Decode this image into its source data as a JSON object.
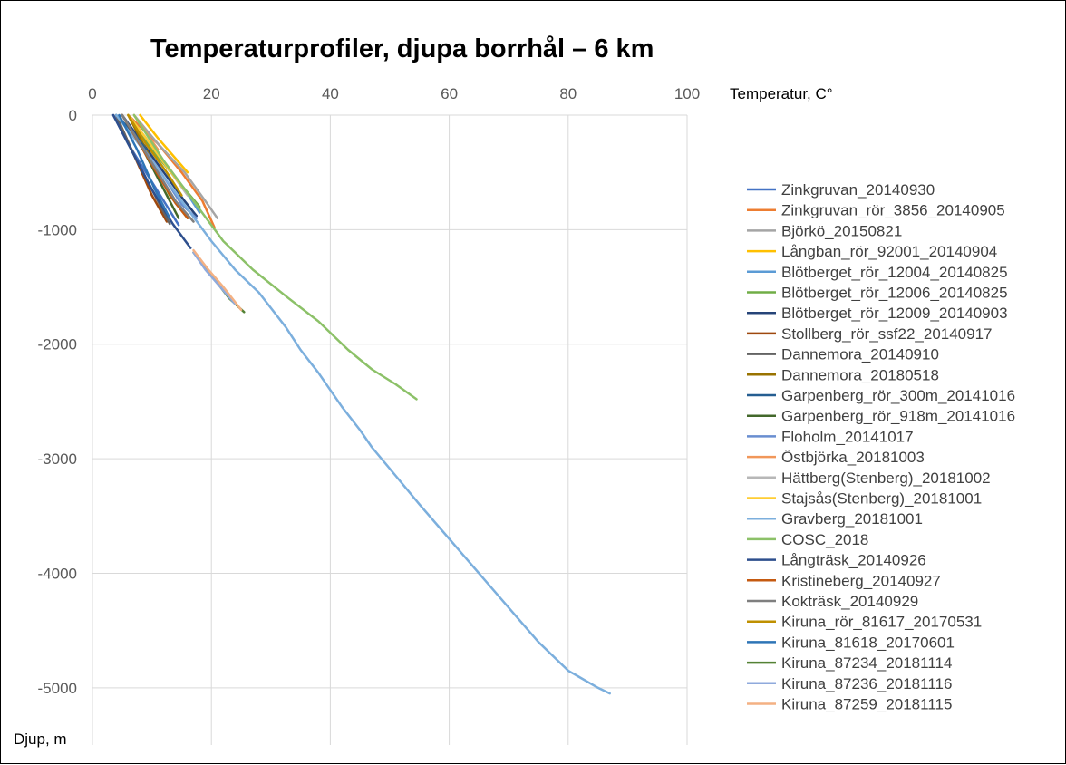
{
  "chart_data": {
    "type": "line",
    "title": "Temperaturprofiler, djupa borrhål – 6 km",
    "xlabel": "Temperatur, C°",
    "ylabel": "Djup, m",
    "xlim": [
      0,
      100
    ],
    "ylim": [
      -5500,
      0
    ],
    "x_ticks": [
      "0",
      "20",
      "40",
      "60",
      "80",
      "100"
    ],
    "y_ticks": [
      "0",
      "-1000",
      "-2000",
      "-3000",
      "-4000",
      "-5000"
    ],
    "x_tick_values": [
      0,
      20,
      40,
      60,
      80,
      100
    ],
    "y_tick_values": [
      0,
      -1000,
      -2000,
      -3000,
      -4000,
      -5000
    ],
    "x_axis_position": "top",
    "grid": true,
    "legend_position": "right",
    "series": [
      {
        "name": "Zinkgruvan_20140930",
        "color": "#4472c4",
        "x": [
          3.5,
          6,
          9,
          12,
          14.5
        ],
        "y": [
          0,
          -250,
          -500,
          -750,
          -960
        ]
      },
      {
        "name": "Zinkgruvan_rör_3856_20140905",
        "color": "#ed7d31",
        "x": [
          6,
          11,
          15,
          18.5,
          20.5
        ],
        "y": [
          0,
          -250,
          -500,
          -750,
          -980
        ]
      },
      {
        "name": "Björkö_20150821",
        "color": "#a5a5a5",
        "x": [
          7,
          11,
          15.5,
          19,
          21
        ],
        "y": [
          0,
          -250,
          -500,
          -750,
          -900
        ]
      },
      {
        "name": "Långban_rör_92001_20140904",
        "color": "#ffc000",
        "x": [
          8,
          11,
          14,
          16
        ],
        "y": [
          0,
          -200,
          -380,
          -500
        ]
      },
      {
        "name": "Blötberget_rör_12004_20140825",
        "color": "#5b9bd5",
        "x": [
          6,
          9,
          12,
          15.5,
          18
        ],
        "y": [
          0,
          -200,
          -420,
          -650,
          -850
        ]
      },
      {
        "name": "Blötberget_rör_12006_20140825",
        "color": "#70ad47",
        "x": [
          6,
          10,
          14,
          18
        ],
        "y": [
          0,
          -300,
          -550,
          -800
        ]
      },
      {
        "name": "Blötberget_rör_12009_20140903",
        "color": "#264478",
        "x": [
          5,
          8.5,
          12,
          15.5,
          17.5
        ],
        "y": [
          0,
          -250,
          -500,
          -750,
          -880
        ]
      },
      {
        "name": "Stollberg_rör_ssf22_20140917",
        "color": "#9e480e",
        "x": [
          4,
          7,
          10,
          12.5
        ],
        "y": [
          0,
          -350,
          -700,
          -930
        ]
      },
      {
        "name": "Dannemora_20140910",
        "color": "#636363",
        "x": [
          4,
          7,
          10,
          13
        ],
        "y": [
          0,
          -350,
          -650,
          -950
        ]
      },
      {
        "name": "Dannemora_20180518",
        "color": "#997300",
        "x": [
          6,
          9.5,
          13,
          16
        ],
        "y": [
          0,
          -350,
          -700,
          -900
        ]
      },
      {
        "name": "Garpenberg_rör_300m_20141016",
        "color": "#255e91",
        "x": [
          4,
          7,
          9
        ],
        "y": [
          0,
          -160,
          -300
        ]
      },
      {
        "name": "Garpenberg_rör_918m_20141016",
        "color": "#43682b",
        "x": [
          5,
          8.5,
          12,
          14.5
        ],
        "y": [
          0,
          -300,
          -650,
          -900
        ]
      },
      {
        "name": "Floholm_20141017",
        "color": "#698ed0",
        "x": [
          5,
          8,
          11.5,
          15,
          17.5
        ],
        "y": [
          0,
          -250,
          -500,
          -780,
          -900
        ]
      },
      {
        "name": "Östbjörka_20181003",
        "color": "#f1975a",
        "x": [
          7,
          9,
          11
        ],
        "y": [
          0,
          -150,
          -300
        ]
      },
      {
        "name": "Hättberg(Stenberg)_20181002",
        "color": "#b7b7b7",
        "x": [
          6,
          9,
          12.5,
          16
        ],
        "y": [
          0,
          -200,
          -450,
          -700
        ]
      },
      {
        "name": "Stajsås(Stenberg)_20181001",
        "color": "#ffcd33",
        "x": [
          6,
          9,
          12.5,
          15.5
        ],
        "y": [
          0,
          -200,
          -450,
          -650
        ]
      },
      {
        "name": "Gravberg_20181001",
        "color": "#7cafdd",
        "x": [
          4,
          10,
          15,
          20,
          24,
          28,
          32.5,
          35,
          38,
          40,
          42,
          45,
          47,
          51,
          55,
          60,
          65,
          70,
          75,
          80,
          85,
          87
        ],
        "y": [
          0,
          -400,
          -750,
          -1100,
          -1350,
          -1550,
          -1850,
          -2050,
          -2250,
          -2400,
          -2550,
          -2750,
          -2900,
          -3150,
          -3400,
          -3700,
          -4000,
          -4300,
          -4600,
          -4850,
          -5000,
          -5050
        ]
      },
      {
        "name": "COSC_2018",
        "color": "#8cc168",
        "x": [
          7,
          12,
          17,
          22,
          27,
          33,
          38,
          43,
          47,
          51,
          54.5
        ],
        "y": [
          0,
          -400,
          -750,
          -1100,
          -1350,
          -1600,
          -1800,
          -2050,
          -2220,
          -2350,
          -2480
        ]
      },
      {
        "name": "Långträsk_20140926",
        "color": "#2e4f8d",
        "x": [
          3.5,
          6.5,
          10,
          13.5,
          16.5
        ],
        "y": [
          0,
          -300,
          -650,
          -950,
          -1160
        ]
      },
      {
        "name": "Kristineberg_20140927",
        "color": "#c55a11",
        "x": [
          5,
          8,
          11,
          14,
          16
        ],
        "y": [
          0,
          -260,
          -520,
          -770,
          -900
        ]
      },
      {
        "name": "Kokträsk_20140929",
        "color": "#7f7f7f",
        "x": [
          5,
          8,
          11,
          14,
          17
        ],
        "y": [
          0,
          -250,
          -500,
          -750,
          -930
        ]
      },
      {
        "name": "Kiruna_rör_81617_20170531",
        "color": "#bf9000",
        "x": [
          6,
          9,
          12.5,
          15
        ],
        "y": [
          0,
          -250,
          -500,
          -700
        ]
      },
      {
        "name": "Kiruna_81618_20170601",
        "color": "#2e75b6",
        "x": [
          4.5,
          7.5,
          10.5,
          13
        ],
        "y": [
          0,
          -300,
          -650,
          -900
        ]
      },
      {
        "name": "Kiruna_87234_20181114",
        "color": "#548235",
        "x": [
          17,
          20,
          23,
          25.5
        ],
        "y": [
          -1200,
          -1400,
          -1600,
          -1720
        ]
      },
      {
        "name": "Kiruna_87236_20181116",
        "color": "#8faadc",
        "x": [
          17,
          19,
          21.5,
          24
        ],
        "y": [
          -1200,
          -1350,
          -1500,
          -1650
        ]
      },
      {
        "name": "Kiruna_87259_20181115",
        "color": "#f4b183",
        "x": [
          17,
          19.5,
          22,
          25
        ],
        "y": [
          -1180,
          -1350,
          -1500,
          -1700
        ]
      }
    ]
  }
}
